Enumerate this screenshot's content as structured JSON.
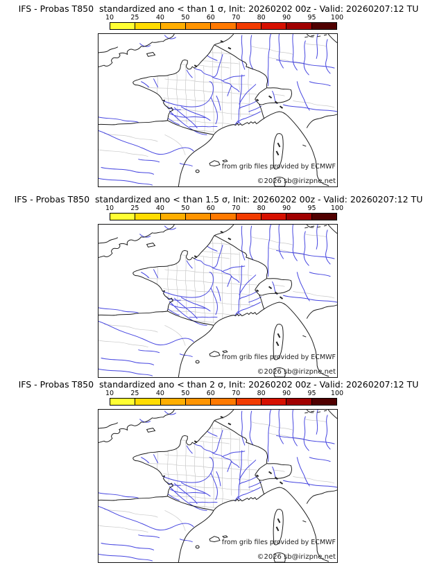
{
  "panels": [
    {
      "title": "IFS - Probas T850  standardized ano < than 1 σ, Init: 20260202 00z - Valid: 20260207:12 TU"
    },
    {
      "title": "IFS - Probas T850  standardized ano < than 1.5 σ, Init: 20260202 00z - Valid: 20260207:12 TU"
    },
    {
      "title": "IFS - Probas T850  standardized ano < than 2 σ, Init: 20260202 00z - Valid: 20260207:12 TU"
    }
  ],
  "colorbar": {
    "tick_labels": [
      "10",
      "25",
      "40",
      "50",
      "60",
      "70",
      "80",
      "90",
      "95",
      "100"
    ],
    "segment_colors": [
      "#FFFF33",
      "#FFDC00",
      "#FFAE00",
      "#FF9400",
      "#FF7900",
      "#F23B00",
      "#D61000",
      "#A00000",
      "#500000"
    ]
  },
  "map": {
    "credit_line1": "from grib files provided by ECMWF",
    "credit_line2": "©2026 sb@irizpne.net",
    "coast_color": "#1a1a1a",
    "admin_color": "#c8c8c8",
    "river_color": "#4444e0"
  }
}
